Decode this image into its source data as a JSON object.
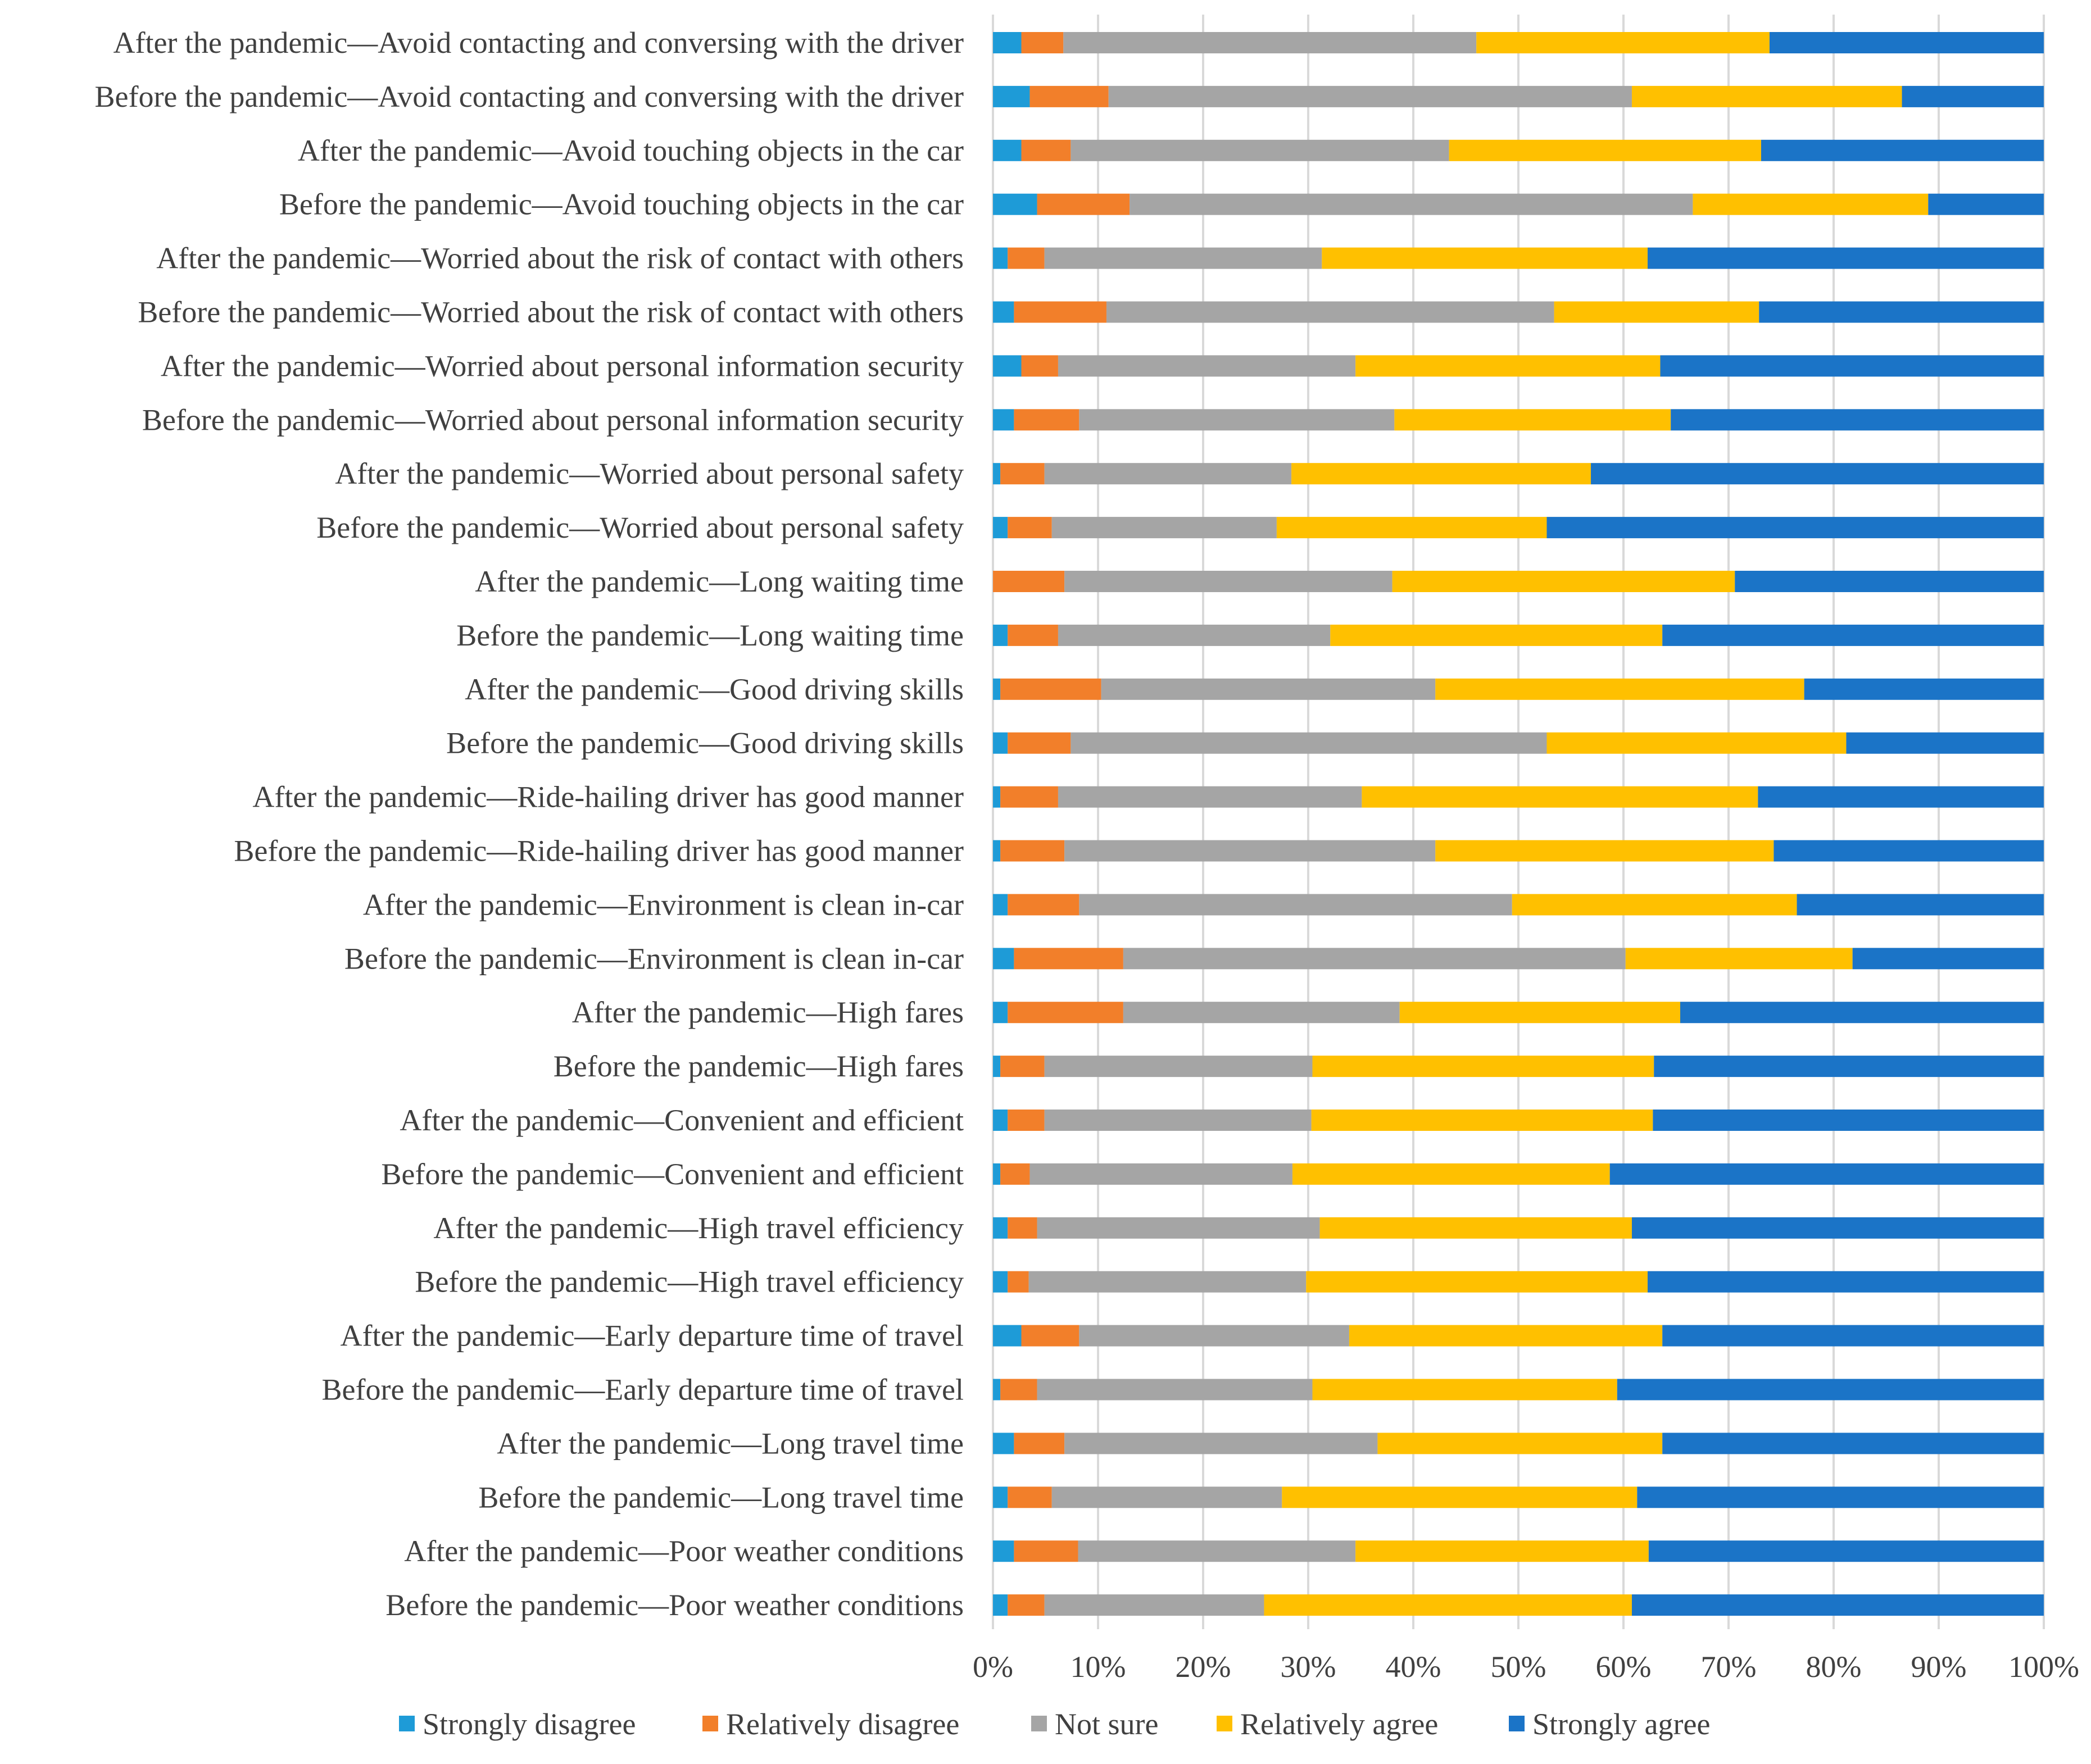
{
  "chart_data": {
    "type": "bar",
    "orientation": "horizontal",
    "stacked": true,
    "percent_stacked": true,
    "title": "",
    "xlabel": "",
    "ylabel": "",
    "xlim": [
      0,
      100
    ],
    "grid": true,
    "legend_position": "bottom",
    "x_ticks": [
      "0%",
      "10%",
      "20%",
      "30%",
      "40%",
      "50%",
      "60%",
      "70%",
      "80%",
      "90%",
      "100%"
    ],
    "categories": [
      "After the pandemic—Avoid contacting and conversing with the driver",
      "Before the pandemic—Avoid contacting and conversing with the driver",
      "After the pandemic—Avoid touching objects in the car",
      "Before the pandemic—Avoid touching objects in the car",
      "After the pandemic—Worried about the risk of contact with others",
      "Before the pandemic—Worried about the risk of contact with others",
      "After the pandemic—Worried about personal information security",
      "Before the pandemic—Worried about personal information security",
      "After the pandemic—Worried about personal safety",
      "Before the pandemic—Worried about personal safety",
      "After the pandemic—Long waiting time",
      "Before the pandemic—Long waiting time",
      "After the pandemic—Good driving skills",
      "Before the pandemic—Good driving skills",
      "After the pandemic—Ride-hailing driver has good manner",
      "Before the pandemic—Ride-hailing driver has good manner",
      "After the pandemic—Environment is clean in-car",
      "Before the pandemic—Environment is clean in-car",
      "After the pandemic—High fares",
      "Before the pandemic—High fares",
      "After the pandemic—Convenient and efficient",
      "Before the pandemic—Convenient and efficient",
      "After the pandemic—High travel efficiency",
      "Before the pandemic—High travel efficiency",
      "After the pandemic—Early departure time of travel",
      "Before the pandemic—Early departure time of travel",
      "After the pandemic—Long travel time",
      "Before the pandemic—Long travel time",
      "After the pandemic—Poor weather conditions",
      "Before the pandemic—Poor weather conditions"
    ],
    "series": [
      {
        "name": "Strongly disagree",
        "color": "#1e9bd7",
        "values": [
          2.7,
          3.5,
          2.7,
          4.2,
          1.4,
          2.0,
          2.7,
          2.0,
          0.7,
          1.4,
          0.0,
          1.4,
          0.7,
          1.4,
          0.7,
          0.7,
          1.4,
          2.0,
          1.4,
          0.7,
          1.4,
          0.7,
          1.4,
          1.4,
          2.7,
          0.7,
          2.0,
          1.4,
          2.0,
          1.4
        ]
      },
      {
        "name": "Relatively disagree",
        "color": "#f27f2a",
        "values": [
          4.0,
          7.5,
          4.7,
          8.8,
          3.5,
          8.8,
          3.5,
          6.2,
          4.2,
          4.2,
          6.8,
          4.8,
          9.6,
          6.0,
          5.5,
          6.1,
          6.8,
          10.4,
          11.0,
          4.2,
          3.5,
          2.8,
          2.8,
          2.0,
          5.5,
          3.5,
          4.8,
          4.2,
          6.1,
          3.5
        ]
      },
      {
        "name": "Not sure",
        "color": "#a5a5a5",
        "values": [
          39.3,
          49.8,
          36.0,
          53.6,
          26.4,
          42.6,
          28.3,
          30.0,
          23.5,
          21.4,
          31.2,
          25.9,
          31.8,
          45.3,
          28.9,
          35.3,
          41.2,
          47.8,
          26.3,
          25.5,
          25.4,
          25.0,
          26.9,
          26.4,
          25.7,
          26.2,
          29.8,
          21.9,
          26.4,
          20.9
        ]
      },
      {
        "name": "Relatively agree",
        "color": "#ffc000",
        "values": [
          27.9,
          25.7,
          29.7,
          22.4,
          31.0,
          19.5,
          29.0,
          26.3,
          28.5,
          25.7,
          32.6,
          31.6,
          35.1,
          28.5,
          37.7,
          32.2,
          27.1,
          21.6,
          26.7,
          32.5,
          32.5,
          30.2,
          29.7,
          32.5,
          29.8,
          29.0,
          27.1,
          33.8,
          27.9,
          35.0
        ]
      },
      {
        "name": "Strongly agree",
        "color": "#1b74c7",
        "values": [
          26.1,
          13.5,
          26.9,
          11.0,
          37.7,
          27.1,
          36.5,
          35.5,
          43.1,
          47.3,
          29.4,
          36.3,
          22.8,
          18.8,
          27.2,
          25.7,
          23.5,
          18.2,
          34.6,
          37.1,
          37.2,
          41.3,
          39.2,
          37.7,
          36.3,
          40.6,
          36.3,
          38.7,
          37.6,
          39.2
        ]
      }
    ]
  }
}
